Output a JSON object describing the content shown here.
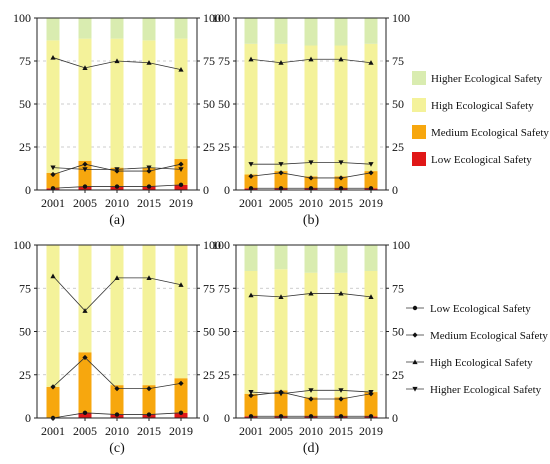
{
  "colors": {
    "higher": "#d9ecb0",
    "high": "#f4f29a",
    "medium": "#f7a70e",
    "low": "#e01717",
    "line": "#333333"
  },
  "legend_bars": [
    {
      "label": "Higher Ecological Safety",
      "color": "#d9ecb0"
    },
    {
      "label": "High Ecological Safety",
      "color": "#f4f29a"
    },
    {
      "label": "Medium Ecological Safety",
      "color": "#f7a70e"
    },
    {
      "label": "Low Ecological Safety",
      "color": "#e01717"
    }
  ],
  "legend_lines": [
    {
      "label": "Low Ecological Safety",
      "marker": "circle"
    },
    {
      "label": "Medium Ecological Safety",
      "marker": "diamond"
    },
    {
      "label": "High Ecological Safety",
      "marker": "triangle-up"
    },
    {
      "label": "Higher Ecological Safety",
      "marker": "triangle-down"
    }
  ],
  "chart_data": [
    {
      "type": "bar",
      "caption": "(a)",
      "categories": [
        "2001",
        "2005",
        "2010",
        "2015",
        "2019"
      ],
      "ylim": [
        0,
        100
      ],
      "yticks": [
        0,
        25,
        50,
        75,
        100
      ],
      "stacked": true,
      "series": [
        {
          "name": "Low Ecological Safety",
          "values": [
            1,
            2,
            2,
            2,
            3
          ]
        },
        {
          "name": "Medium Ecological Safety",
          "values": [
            9,
            15,
            11,
            11,
            15
          ]
        },
        {
          "name": "High Ecological Safety",
          "values": [
            77,
            71,
            75,
            74,
            70
          ]
        },
        {
          "name": "Higher Ecological Safety",
          "values": [
            13,
            12,
            12,
            13,
            12
          ]
        }
      ]
    },
    {
      "type": "bar",
      "caption": "(b)",
      "categories": [
        "2001",
        "2005",
        "2010",
        "2015",
        "2019"
      ],
      "ylim": [
        0,
        100
      ],
      "yticks": [
        0,
        25,
        50,
        75,
        100
      ],
      "stacked": true,
      "series": [
        {
          "name": "Low Ecological Safety",
          "values": [
            1,
            1,
            1,
            1,
            1
          ]
        },
        {
          "name": "Medium Ecological Safety",
          "values": [
            8,
            10,
            7,
            7,
            10
          ]
        },
        {
          "name": "High Ecological Safety",
          "values": [
            76,
            74,
            76,
            76,
            74
          ]
        },
        {
          "name": "Higher Ecological Safety",
          "values": [
            15,
            15,
            16,
            16,
            15
          ]
        }
      ]
    },
    {
      "type": "bar",
      "caption": "(c)",
      "categories": [
        "2001",
        "2005",
        "2010",
        "2015",
        "2019"
      ],
      "ylim": [
        0,
        100
      ],
      "yticks": [
        0,
        25,
        50,
        75,
        100
      ],
      "stacked": true,
      "series": [
        {
          "name": "Low Ecological Safety",
          "values": [
            0,
            3,
            2,
            2,
            3
          ]
        },
        {
          "name": "Medium Ecological Safety",
          "values": [
            18,
            35,
            17,
            17,
            20
          ]
        },
        {
          "name": "High Ecological Safety",
          "values": [
            82,
            62,
            81,
            81,
            77
          ]
        },
        {
          "name": "Higher Ecological Safety",
          "values": [
            0,
            0,
            0,
            0,
            0
          ]
        }
      ]
    },
    {
      "type": "bar",
      "caption": "(d)",
      "categories": [
        "2001",
        "2005",
        "2010",
        "2015",
        "2019"
      ],
      "ylim": [
        0,
        100
      ],
      "yticks": [
        0,
        25,
        50,
        75,
        100
      ],
      "stacked": true,
      "series": [
        {
          "name": "Low Ecological Safety",
          "values": [
            1,
            1,
            1,
            1,
            1
          ]
        },
        {
          "name": "Medium Ecological Safety",
          "values": [
            13,
            15,
            11,
            11,
            14
          ]
        },
        {
          "name": "High Ecological Safety",
          "values": [
            71,
            70,
            72,
            72,
            70
          ]
        },
        {
          "name": "Higher Ecological Safety",
          "values": [
            15,
            14,
            16,
            16,
            15
          ]
        }
      ]
    }
  ]
}
